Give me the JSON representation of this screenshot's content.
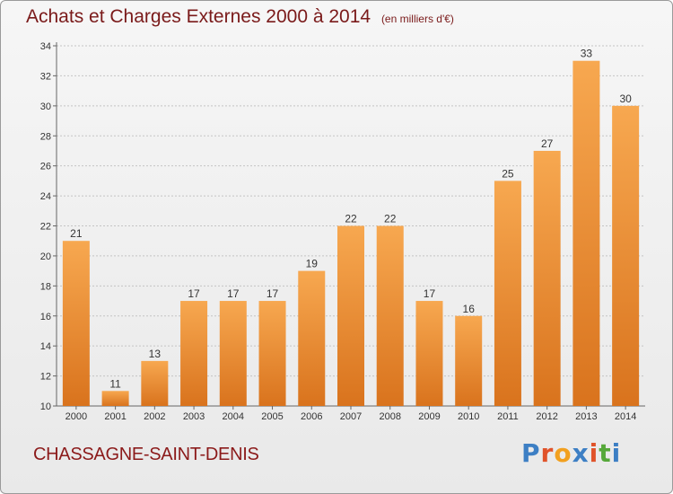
{
  "header": {
    "title": "Achats et Charges Externes 2000 à 2014",
    "subtitle": "(en milliers d'€)"
  },
  "footer": {
    "commune": "CHASSAGNE-SAINT-DENIS",
    "logo_text": "Proxiti",
    "logo_colors": [
      "#3d7fc4",
      "#e0532a",
      "#f2a01f",
      "#3d7fc4",
      "#e0532a",
      "#56a83a",
      "#3d7fc4"
    ]
  },
  "colors": {
    "bar_light": "#f7a850",
    "bar_dark": "#d9731d",
    "title": "#7a1a1a",
    "grid": "#bbbbbb"
  },
  "chart_data": {
    "type": "bar",
    "title": "Achats et Charges Externes 2000 à 2014",
    "subtitle": "(en milliers d'€)",
    "categories": [
      "2000",
      "2001",
      "2002",
      "2003",
      "2004",
      "2005",
      "2006",
      "2007",
      "2008",
      "2009",
      "2010",
      "2011",
      "2012",
      "2013",
      "2014"
    ],
    "values": [
      21,
      11,
      13,
      17,
      17,
      17,
      19,
      22,
      22,
      17,
      16,
      25,
      27,
      33,
      30
    ],
    "ylim": [
      10,
      34
    ],
    "yticks": [
      10,
      12,
      14,
      16,
      18,
      20,
      22,
      24,
      26,
      28,
      30,
      32,
      34
    ],
    "grid": true,
    "data_labels": true
  }
}
